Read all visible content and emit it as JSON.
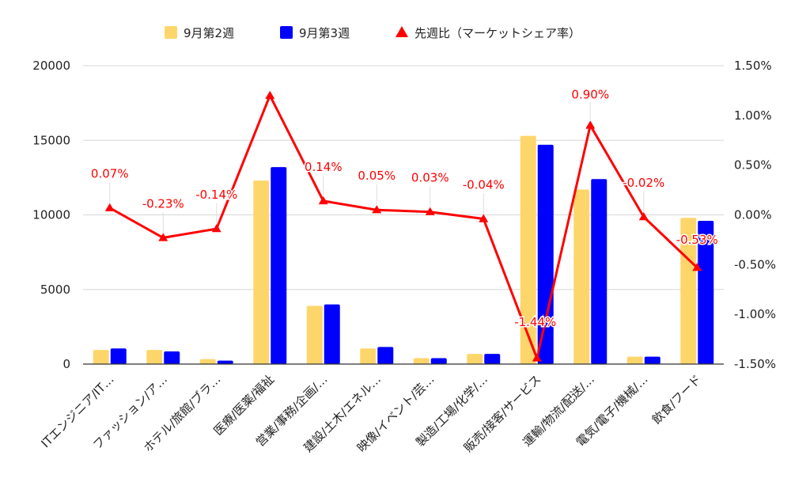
{
  "chart_data": {
    "type": "bar",
    "categories": [
      "ITエンジニア/IT…",
      "ファッション/ア…",
      "ホテル/旅館/ブラ…",
      "医療/医薬/福祉",
      "営業/事務/企画/…",
      "建設/土木/エネル…",
      "映像/イベント/芸…",
      "製造/工場/化学/…",
      "販売/接客/サービス",
      "運輸/物流/配送/…",
      "電気/電子/機械/…",
      "飲食/フード"
    ],
    "series": [
      {
        "name": "9月第2週",
        "axis": "left",
        "color": "#fdd66b",
        "values": [
          950,
          950,
          330,
          12300,
          3900,
          1050,
          400,
          680,
          15300,
          11700,
          500,
          9800
        ]
      },
      {
        "name": "9月第3週",
        "axis": "left",
        "color": "#0000ff",
        "values": [
          1050,
          850,
          230,
          13200,
          4000,
          1150,
          400,
          680,
          14700,
          12400,
          500,
          9600
        ]
      },
      {
        "name": "先週比（マーケットシェア率）",
        "type": "line",
        "axis": "right",
        "color": "#ff0000",
        "marker": "triangle",
        "values": [
          0.07,
          -0.23,
          -0.14,
          1.2,
          0.14,
          0.05,
          0.03,
          -0.04,
          -1.44,
          0.9,
          -0.02,
          -0.53
        ],
        "labels": [
          "0.07%",
          "-0.23%",
          "-0.14%",
          "",
          "0.14%",
          "0.05%",
          "0.03%",
          "-0.04%",
          "-1.44%",
          "0.90%",
          "-0.02%",
          "-0.53%"
        ]
      }
    ],
    "y_left": {
      "ylim": [
        0,
        20000
      ],
      "ticks": [
        0,
        5000,
        10000,
        15000,
        20000
      ],
      "tick_labels": [
        "0",
        "5000",
        "10000",
        "15000",
        "20000"
      ]
    },
    "y_right": {
      "ylim": [
        -1.5,
        1.5
      ],
      "ticks": [
        -1.5,
        -1.0,
        -0.5,
        0.0,
        0.5,
        1.0,
        1.5
      ],
      "tick_labels": [
        "-1.50%",
        "-1.00%",
        "-0.50%",
        "0.00%",
        "0.50%",
        "1.00%",
        "1.50%"
      ]
    },
    "grid": true,
    "legend_position": "top"
  }
}
